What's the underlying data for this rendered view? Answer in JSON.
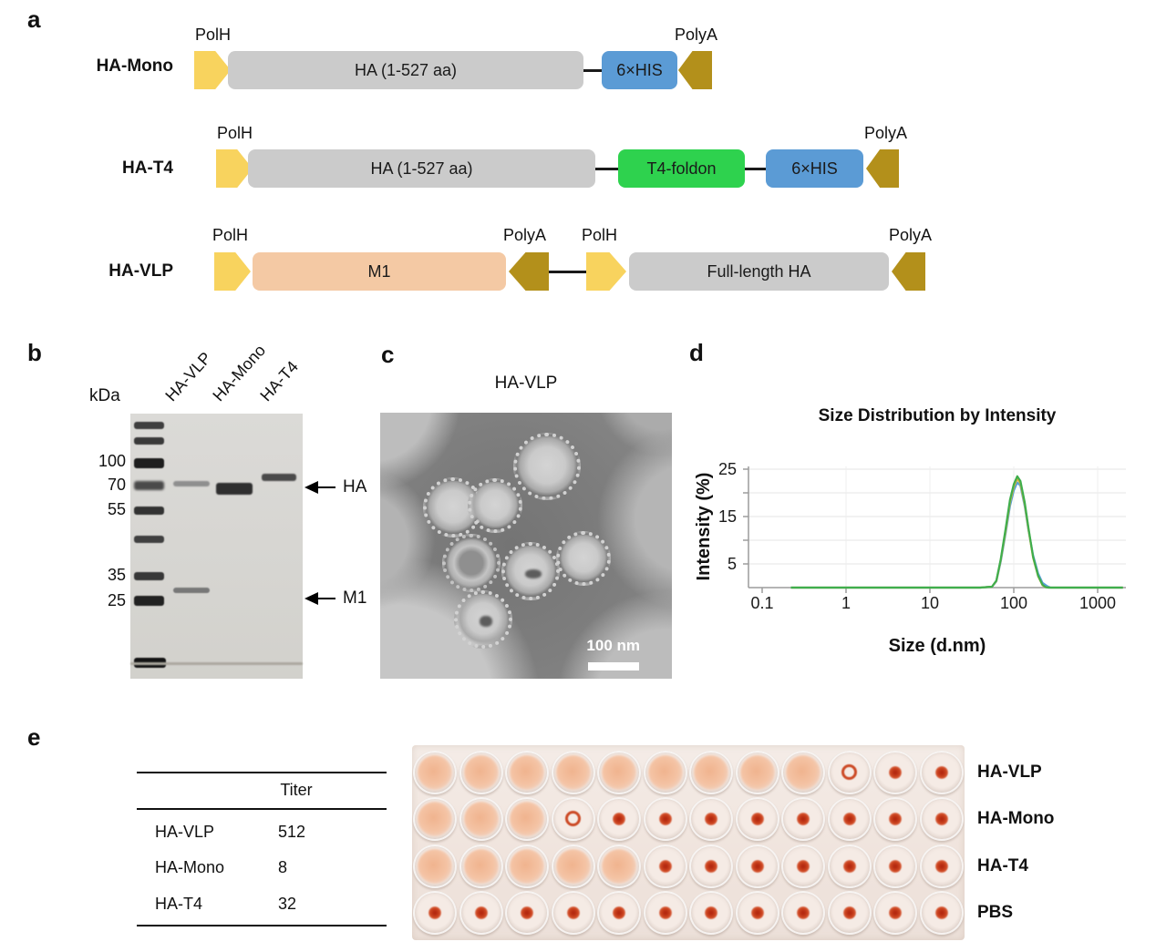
{
  "panel_letters": {
    "a": "a",
    "b": "b",
    "c": "c",
    "d": "d",
    "e": "e"
  },
  "panel_a": {
    "colors": {
      "polh_yellow": "#f8d35e",
      "polya_gold": "#b3901b",
      "gene_gray": "#cbcbcb",
      "his_blue": "#5b9bd5",
      "t4_green": "#2ed24e",
      "m1_peach": "#f4c9a4"
    },
    "row1": {
      "name": "HA-Mono",
      "polh_label": "PolH",
      "gene_label": "HA (1-527 aa)",
      "his_label": "6×HIS",
      "polya_label": "PolyA"
    },
    "row2": {
      "name": "HA-T4",
      "polh_label": "PolH",
      "gene_label": "HA (1-527 aa)",
      "t4_label": "T4-foldon",
      "his_label": "6×HIS",
      "polya_label": "PolyA"
    },
    "row3": {
      "name": "HA-VLP",
      "polh1_label": "PolH",
      "m1_label": "M1",
      "polya1_label": "PolyA",
      "polh2_label": "PolH",
      "ha_label": "Full-length HA",
      "polya2_label": "PolyA"
    }
  },
  "panel_b": {
    "kda_label": "kDa",
    "lane_labels": [
      "HA-VLP",
      "HA-Mono",
      "HA-T4"
    ],
    "marker_labels": [
      "100",
      "70",
      "55",
      "35",
      "25"
    ],
    "band_annotations": [
      "HA",
      "M1"
    ]
  },
  "panel_c": {
    "title": "HA-VLP",
    "scale_bar": "100 nm"
  },
  "chart_data": {
    "type": "line",
    "title": "Size Distribution by Intensity",
    "xlabel": "Size (d.nm)",
    "ylabel": "Intensity (%)",
    "x_scale": "log",
    "xlim": [
      0.1,
      2000
    ],
    "ylim": [
      0,
      25.5
    ],
    "xticks": [
      0.1,
      1,
      10,
      100,
      1000
    ],
    "yticks": [
      5,
      15,
      25
    ],
    "grid": true,
    "legend": "none",
    "series": [
      {
        "name": "replicate-blue",
        "color": "#569fd8",
        "points": [
          [
            0.22,
            0
          ],
          [
            40,
            0
          ],
          [
            55,
            0.2
          ],
          [
            62,
            1.3
          ],
          [
            70,
            5.5
          ],
          [
            80,
            11.5
          ],
          [
            90,
            17.2
          ],
          [
            100,
            20.5
          ],
          [
            110,
            22.2
          ],
          [
            120,
            21.5
          ],
          [
            135,
            17.2
          ],
          [
            150,
            12
          ],
          [
            170,
            6.8
          ],
          [
            195,
            3
          ],
          [
            220,
            1
          ],
          [
            250,
            0.3
          ],
          [
            275,
            0
          ],
          [
            2000,
            0
          ]
        ]
      },
      {
        "name": "replicate-yellow",
        "color": "#d4b33c",
        "points": [
          [
            0.22,
            0
          ],
          [
            40,
            0
          ],
          [
            55,
            0.2
          ],
          [
            62,
            1.4
          ],
          [
            70,
            5.8
          ],
          [
            80,
            12
          ],
          [
            90,
            18
          ],
          [
            100,
            21.3
          ],
          [
            110,
            23
          ],
          [
            120,
            22
          ],
          [
            135,
            17.6
          ],
          [
            150,
            12.2
          ],
          [
            170,
            6.3
          ],
          [
            195,
            2.4
          ],
          [
            220,
            0.5
          ],
          [
            240,
            0.1
          ],
          [
            260,
            0
          ],
          [
            2000,
            0
          ]
        ]
      },
      {
        "name": "replicate-green",
        "color": "#3fae4c",
        "points": [
          [
            0.22,
            0
          ],
          [
            40,
            0
          ],
          [
            55,
            0.2
          ],
          [
            62,
            1.5
          ],
          [
            70,
            6
          ],
          [
            80,
            12.5
          ],
          [
            90,
            18.5
          ],
          [
            100,
            21.8
          ],
          [
            110,
            23.5
          ],
          [
            120,
            22.5
          ],
          [
            135,
            18
          ],
          [
            150,
            12.5
          ],
          [
            170,
            6.5
          ],
          [
            195,
            2.5
          ],
          [
            220,
            0.6
          ],
          [
            240,
            0.1
          ],
          [
            260,
            0
          ],
          [
            2000,
            0
          ]
        ]
      }
    ]
  },
  "panel_e": {
    "table": {
      "header": "Titer",
      "rows": [
        {
          "name": "HA-VLP",
          "value": "512"
        },
        {
          "name": "HA-Mono",
          "value": "8"
        },
        {
          "name": "HA-T4",
          "value": "32"
        }
      ]
    },
    "plate": {
      "well_legend": {
        "d": "diffuse-agglutination",
        "b": "red-button",
        "r": "red-ring"
      },
      "rows": [
        {
          "label": "HA-VLP",
          "wells": [
            "d",
            "d",
            "d",
            "d",
            "d",
            "d",
            "d",
            "d",
            "d",
            "r",
            "b",
            "b"
          ]
        },
        {
          "label": "HA-Mono",
          "wells": [
            "d",
            "d",
            "d",
            "r",
            "b",
            "b",
            "b",
            "b",
            "b",
            "b",
            "b",
            "b"
          ]
        },
        {
          "label": "HA-T4",
          "wells": [
            "d",
            "d",
            "d",
            "d",
            "d",
            "b",
            "b",
            "b",
            "b",
            "b",
            "b",
            "b"
          ]
        },
        {
          "label": "PBS",
          "wells": [
            "b",
            "b",
            "b",
            "b",
            "b",
            "b",
            "b",
            "b",
            "b",
            "b",
            "b",
            "b"
          ]
        }
      ]
    }
  }
}
